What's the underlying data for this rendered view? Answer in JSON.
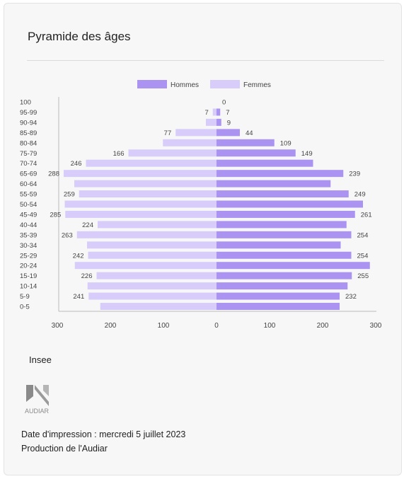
{
  "card": {
    "title": "Pyramide des âges",
    "source": "Insee",
    "logo_text": "AUDIAR",
    "print_date": "Date d'impression : mercredi 5 juillet 2023",
    "production": "Production de l'Audiar"
  },
  "colors": {
    "hommes": "#ab93f1",
    "femmes": "#d8cdfa",
    "axis": "#bbbbbb",
    "text": "#444444"
  },
  "chart_data": {
    "type": "bar",
    "orientation": "horizontal",
    "title": "",
    "categories": [
      "100",
      "95-99",
      "90-94",
      "85-89",
      "80-84",
      "75-79",
      "70-74",
      "65-69",
      "60-64",
      "55-59",
      "50-54",
      "45-49",
      "40-44",
      "35-39",
      "30-34",
      "25-29",
      "20-24",
      "15-19",
      "10-14",
      "5-9",
      "0-5"
    ],
    "series": [
      {
        "name": "Hommes",
        "values": [
          0,
          7,
          9,
          44,
          109,
          149,
          182,
          239,
          215,
          249,
          276,
          261,
          245,
          254,
          234,
          254,
          289,
          255,
          247,
          232,
          232
        ],
        "labels": [
          "0",
          "7",
          "9",
          "44",
          "109",
          "149",
          "",
          "239",
          "",
          "249",
          "",
          "261",
          "",
          "254",
          "",
          "254",
          "",
          "255",
          "",
          "232",
          ""
        ]
      },
      {
        "name": "Femmes",
        "values": [
          0,
          7,
          20,
          77,
          101,
          166,
          246,
          288,
          268,
          259,
          286,
          285,
          224,
          263,
          244,
          242,
          267,
          226,
          243,
          241,
          219
        ],
        "labels": [
          "",
          "7",
          "",
          "77",
          "",
          "166",
          "246",
          "288",
          "",
          "259",
          "",
          "285",
          "224",
          "263",
          "",
          "242",
          "",
          "226",
          "",
          "241",
          ""
        ]
      }
    ],
    "xlim": [
      -300,
      300
    ],
    "xticks": [
      -300,
      -200,
      -100,
      0,
      100,
      200,
      300
    ],
    "xtick_labels": [
      "300",
      "200",
      "100",
      "0",
      "100",
      "200",
      "300"
    ],
    "legend_position": "top",
    "grid": false
  }
}
